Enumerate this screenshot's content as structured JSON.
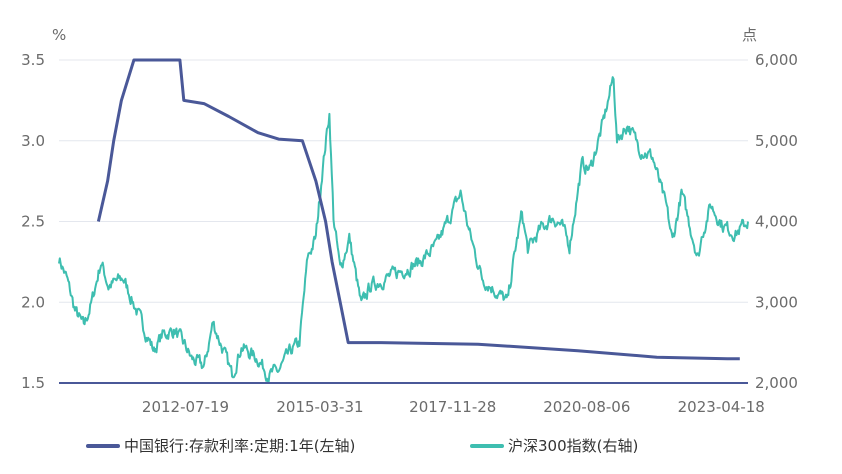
{
  "chart_data": {
    "type": "line",
    "left_axis": {
      "unit": "%",
      "ticks": [
        "1.5",
        "2.0",
        "2.5",
        "3.0",
        "3.5"
      ],
      "ylim": [
        1.5,
        3.5
      ]
    },
    "right_axis": {
      "unit": "点",
      "ticks": [
        "2,000",
        "3,000",
        "4,000",
        "5,000",
        "6,000"
      ],
      "ylim": [
        2000,
        6000
      ]
    },
    "x_tick_labels": [
      "2012-07-19",
      "2015-03-31",
      "2017-11-28",
      "2020-08-06",
      "2023-04-18"
    ],
    "x_tick_values": [
      "2012-07-19",
      "2015-03-31",
      "2017-11-28",
      "2020-08-06",
      "2023-04-18"
    ],
    "xlim": [
      "2010-01-04",
      "2023-10-31"
    ],
    "grid": true,
    "legend_position": "bottom",
    "series": [
      {
        "name": "中国银行:存款利率:定期:1年(左轴)",
        "axis": "left",
        "color": "#4a5898",
        "x": [
          "2010-10-20",
          "2010-12-26",
          "2011-02-09",
          "2011-04-06",
          "2011-07-07",
          "2012-06-08",
          "2012-07-06",
          "2012-12-01",
          "2013-06-01",
          "2014-01-01",
          "2014-06-01",
          "2014-11-22",
          "2015-03-01",
          "2015-05-11",
          "2015-06-28",
          "2015-08-26",
          "2015-10-24",
          "2016-06-01",
          "2018-06-01",
          "2020-06-01",
          "2022-01-01",
          "2023-06-01",
          "2023-09-01"
        ],
        "values": [
          2.5,
          2.75,
          3.0,
          3.25,
          3.5,
          3.5,
          3.25,
          3.23,
          3.15,
          3.05,
          3.01,
          3.0,
          2.75,
          2.5,
          2.25,
          2.0,
          1.75,
          1.75,
          1.74,
          1.7,
          1.66,
          1.65,
          1.65
        ]
      },
      {
        "name": "沪深300指数(右轴)",
        "axis": "right",
        "color": "#3ebeb0",
        "x": [
          "2010-01-04",
          "2010-03-01",
          "2010-05-01",
          "2010-07-05",
          "2010-09-01",
          "2010-11-08",
          "2011-01-01",
          "2011-04-18",
          "2011-07-01",
          "2011-09-01",
          "2011-12-01",
          "2012-02-01",
          "2012-05-01",
          "2012-07-19",
          "2012-09-01",
          "2012-12-03",
          "2013-02-05",
          "2013-06-25",
          "2013-09-01",
          "2014-01-01",
          "2014-03-20",
          "2014-06-01",
          "2014-09-01",
          "2014-11-01",
          "2014-12-31",
          "2015-03-01",
          "2015-04-15",
          "2015-06-08",
          "2015-07-08",
          "2015-08-26",
          "2015-11-01",
          "2016-01-28",
          "2016-04-01",
          "2016-08-01",
          "2016-12-01",
          "2017-04-01",
          "2017-08-01",
          "2018-01-24",
          "2018-04-01",
          "2018-07-01",
          "2018-10-01",
          "2019-01-03",
          "2019-03-01",
          "2019-04-19",
          "2019-06-01",
          "2019-09-01",
          "2019-12-01",
          "2020-02-03",
          "2020-04-01",
          "2020-07-01",
          "2020-09-01",
          "2020-12-01",
          "2021-02-18",
          "2021-03-15",
          "2021-06-01",
          "2021-09-01",
          "2021-12-01",
          "2022-03-15",
          "2022-04-26",
          "2022-07-01",
          "2022-10-31",
          "2022-12-01",
          "2023-01-31",
          "2023-05-01",
          "2023-08-01",
          "2023-10-31"
        ],
        "values": [
          3550,
          3300,
          2900,
          2700,
          3000,
          3500,
          3200,
          3300,
          3000,
          2750,
          2400,
          2600,
          2650,
          2450,
          2300,
          2200,
          2750,
          2100,
          2450,
          2300,
          2100,
          2150,
          2400,
          2500,
          3550,
          3800,
          4600,
          5350,
          4050,
          3400,
          3800,
          2950,
          3200,
          3300,
          3400,
          3500,
          3700,
          4350,
          3850,
          3300,
          3150,
          3000,
          3650,
          4100,
          3650,
          3900,
          4050,
          3950,
          3700,
          4700,
          4650,
          5200,
          5800,
          5000,
          5200,
          4900,
          4800,
          4150,
          3750,
          4350,
          3550,
          3850,
          4200,
          3950,
          3850,
          4000
        ]
      }
    ]
  }
}
